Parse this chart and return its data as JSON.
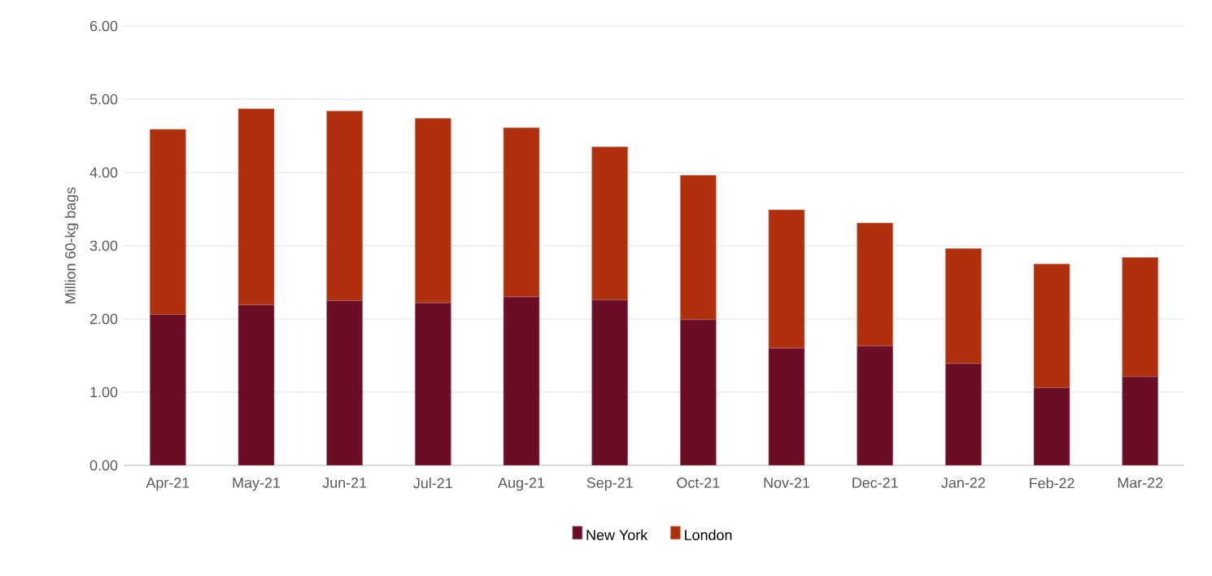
{
  "chart_data": {
    "type": "bar",
    "stacked": true,
    "ylabel": "Million 60-kg bags",
    "categories": [
      "Apr-21",
      "May-21",
      "Jun-21",
      "Jul-21",
      "Aug-21",
      "Sep-21",
      "Oct-21",
      "Nov-21",
      "Dec-21",
      "Jan-22",
      "Feb-22",
      "Mar-22"
    ],
    "series": [
      {
        "name": "New York",
        "color": "#6b0d25",
        "values": [
          2.06,
          2.19,
          2.25,
          2.22,
          2.3,
          2.26,
          1.99,
          1.6,
          1.63,
          1.39,
          1.06,
          1.21
        ]
      },
      {
        "name": "London",
        "color": "#b0300e",
        "values": [
          2.53,
          2.68,
          2.59,
          2.52,
          2.31,
          2.09,
          1.97,
          1.89,
          1.68,
          1.57,
          1.69,
          1.63
        ]
      }
    ],
    "ylim": [
      0,
      6
    ],
    "yticks": [
      {
        "value": 0,
        "label": "0.00"
      },
      {
        "value": 1,
        "label": "1.00"
      },
      {
        "value": 2,
        "label": "2.00"
      },
      {
        "value": 3,
        "label": "3.00"
      },
      {
        "value": 4,
        "label": "4.00"
      },
      {
        "value": 5,
        "label": "5.00"
      },
      {
        "value": 6,
        "label": "6.00"
      }
    ],
    "grid": "y",
    "legend": "bottom"
  }
}
